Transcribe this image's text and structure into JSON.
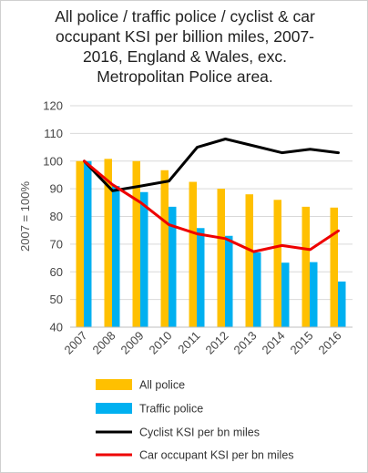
{
  "title_lines": [
    "All police / traffic police / cyclist & car",
    "occupant KSI per billion miles, 2007-",
    "2016, England & Wales, exc.",
    "Metropolitan Police area."
  ],
  "colors": {
    "all_police": "#FFC000",
    "traffic_police": "#00B0F0",
    "cyclist": "#000000",
    "car": "#EE0000",
    "grid": "#d9d9d9"
  },
  "chart_data": {
    "type": "bar",
    "title": "All police / traffic police / cyclist & car occupant KSI per billion miles, 2007-2016, England & Wales, exc. Metropolitan Police area.",
    "ylabel": "2007 = 100%",
    "xlabel": "",
    "ylim": [
      40,
      120
    ],
    "yticks": [
      40,
      50,
      60,
      70,
      80,
      90,
      100,
      110,
      120
    ],
    "grid": true,
    "legend_position": "bottom",
    "categories": [
      "2007",
      "2008",
      "2009",
      "2010",
      "2011",
      "2012",
      "2013",
      "2014",
      "2015",
      "2016"
    ],
    "series": [
      {
        "name": "All police",
        "kind": "bar",
        "color": "#FFC000",
        "values": [
          100,
          100.8,
          100,
          96.7,
          92.5,
          90,
          88,
          86,
          83.5,
          83.2
        ]
      },
      {
        "name": "Traffic police",
        "kind": "bar",
        "color": "#00B0F0",
        "values": [
          100,
          91,
          88.8,
          83.5,
          75.8,
          73,
          67,
          63.3,
          63.5,
          56.5
        ]
      },
      {
        "name": "Cyclist KSI per bn miles",
        "kind": "line",
        "color": "#000000",
        "values": [
          100,
          89.3,
          91,
          92.8,
          105,
          108,
          105.5,
          103,
          104.3,
          103
        ]
      },
      {
        "name": "Car occupant KSI per bn miles",
        "kind": "line",
        "color": "#EE0000",
        "values": [
          100,
          91.5,
          85,
          77,
          73.7,
          72,
          67.3,
          69.5,
          68,
          74.8
        ]
      }
    ]
  }
}
